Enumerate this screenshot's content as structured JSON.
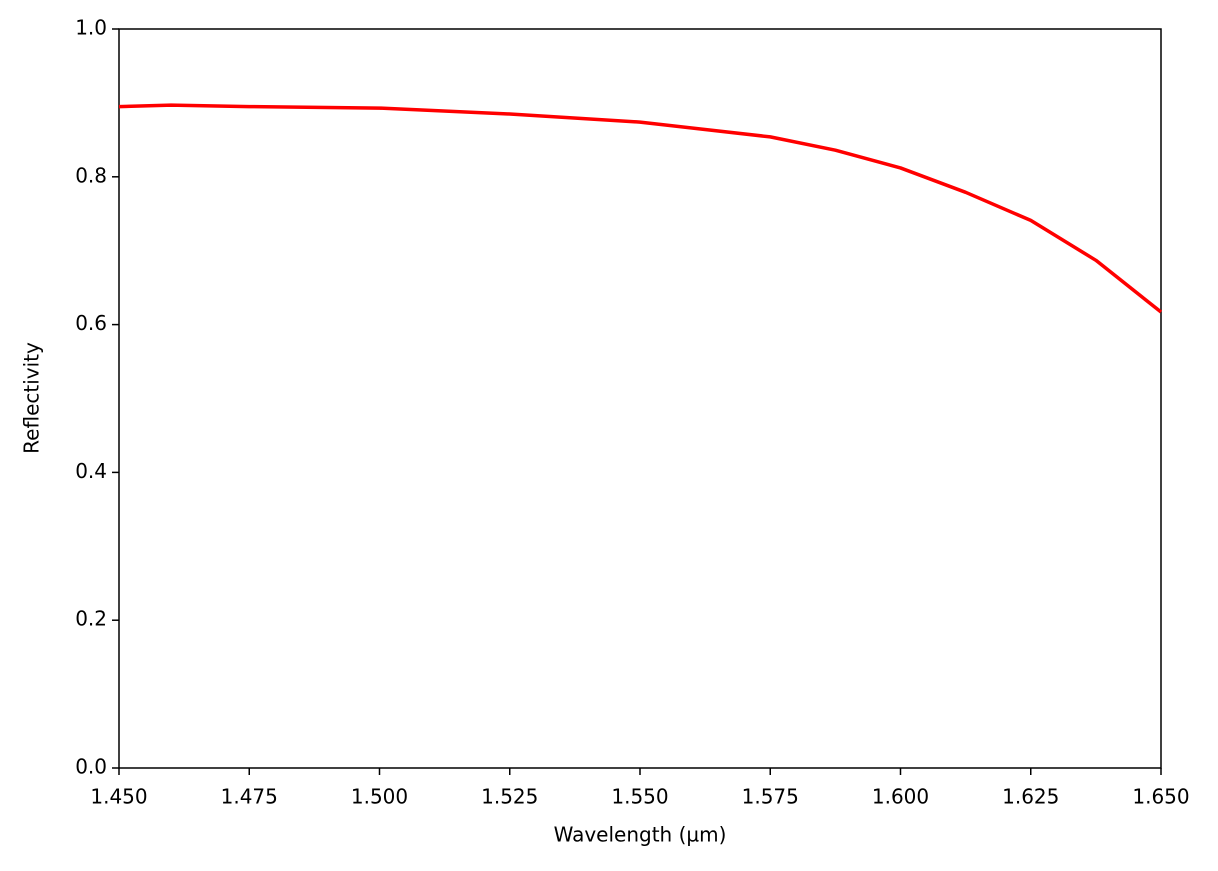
{
  "chart_data": {
    "type": "line",
    "x_label": "Wavelength (µm)",
    "y_label": "Reflectivity",
    "x": [
      1.45,
      1.46,
      1.475,
      1.5,
      1.525,
      1.55,
      1.575,
      1.5875,
      1.6,
      1.6125,
      1.625,
      1.6375,
      1.65
    ],
    "series": [
      {
        "name": "Reflectivity",
        "color": "#ff0000",
        "values": [
          0.895,
          0.897,
          0.895,
          0.893,
          0.885,
          0.874,
          0.854,
          0.836,
          0.812,
          0.779,
          0.741,
          0.687,
          0.617
        ]
      }
    ],
    "xlim": [
      1.45,
      1.65
    ],
    "xticks": [
      {
        "value": 1.45,
        "label": "1.450"
      },
      {
        "value": 1.475,
        "label": "1.475"
      },
      {
        "value": 1.5,
        "label": "1.500"
      },
      {
        "value": 1.525,
        "label": "1.525"
      },
      {
        "value": 1.55,
        "label": "1.550"
      },
      {
        "value": 1.575,
        "label": "1.575"
      },
      {
        "value": 1.6,
        "label": "1.600"
      },
      {
        "value": 1.625,
        "label": "1.625"
      },
      {
        "value": 1.65,
        "label": "1.650"
      }
    ],
    "ylim": [
      0,
      1
    ],
    "yticks": [
      {
        "value": 0,
        "label": "0.0"
      },
      0.2,
      0.4,
      0.6,
      0.8,
      {
        "value": 1,
        "label": "1.0"
      }
    ],
    "grid": false
  }
}
